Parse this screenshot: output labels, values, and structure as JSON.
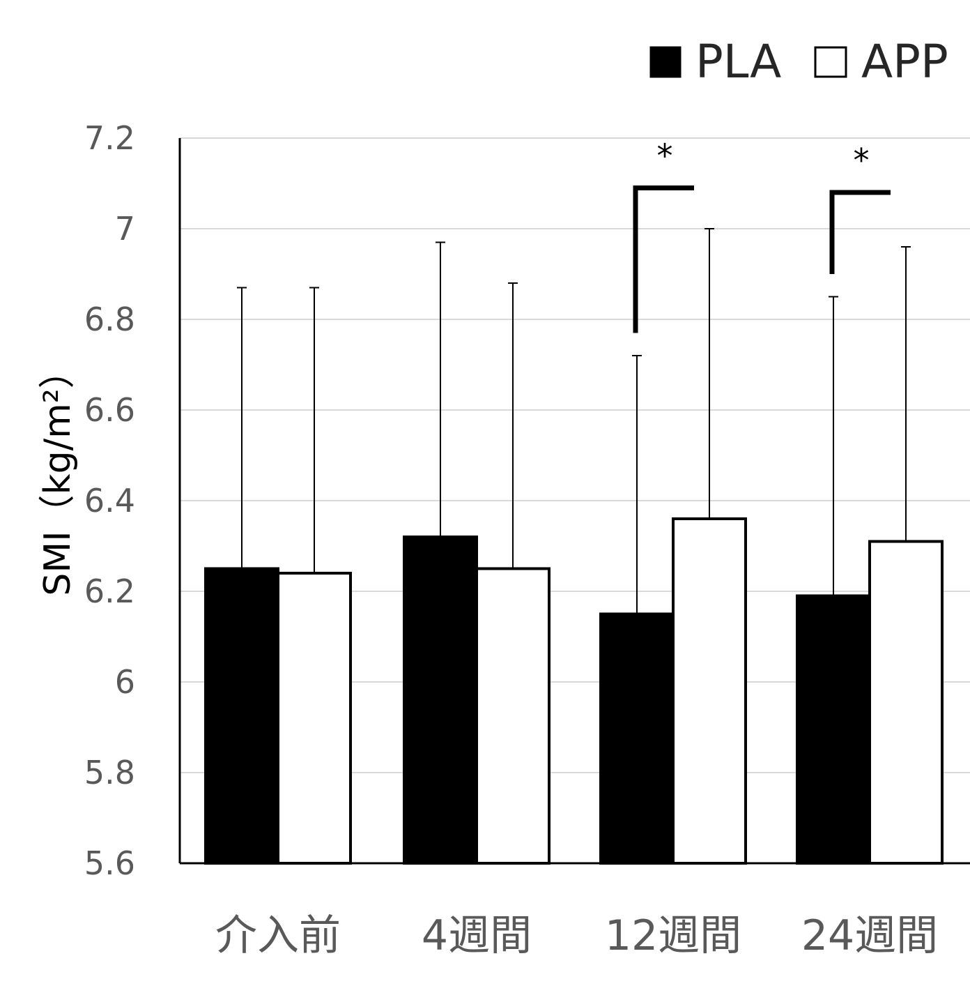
{
  "chart_data": {
    "type": "bar",
    "categories": [
      "介入前",
      "4週間",
      "12週間",
      "24週間"
    ],
    "series": [
      {
        "name": "PLA",
        "color": "#000000",
        "values": [
          6.25,
          6.32,
          6.15,
          6.19
        ],
        "error_upper": [
          6.87,
          6.97,
          6.72,
          6.85
        ]
      },
      {
        "name": "APP",
        "color": "#ffffff",
        "values": [
          6.24,
          6.25,
          6.36,
          6.31
        ],
        "error_upper": [
          6.87,
          6.88,
          7.0,
          6.96
        ]
      }
    ],
    "significance": [
      {
        "category_index": 2,
        "label": "*",
        "bracket_top": 7.09,
        "left_bottom": 6.77
      },
      {
        "category_index": 3,
        "label": "*",
        "bracket_top": 7.08,
        "left_bottom": 6.9
      }
    ],
    "ylabel": "SMI（kg/m²）",
    "xlabel": "",
    "ylim": [
      5.6,
      7.2
    ],
    "yticks": [
      "5.6",
      "5.8",
      "6",
      "6.2",
      "6.4",
      "6.6",
      "6.8",
      "7",
      "7.2"
    ],
    "grid": true,
    "legend_position": "top-right",
    "colors": {
      "grid": "#d9d9d9",
      "axis": "#000000",
      "tick_text": "#595959"
    }
  }
}
